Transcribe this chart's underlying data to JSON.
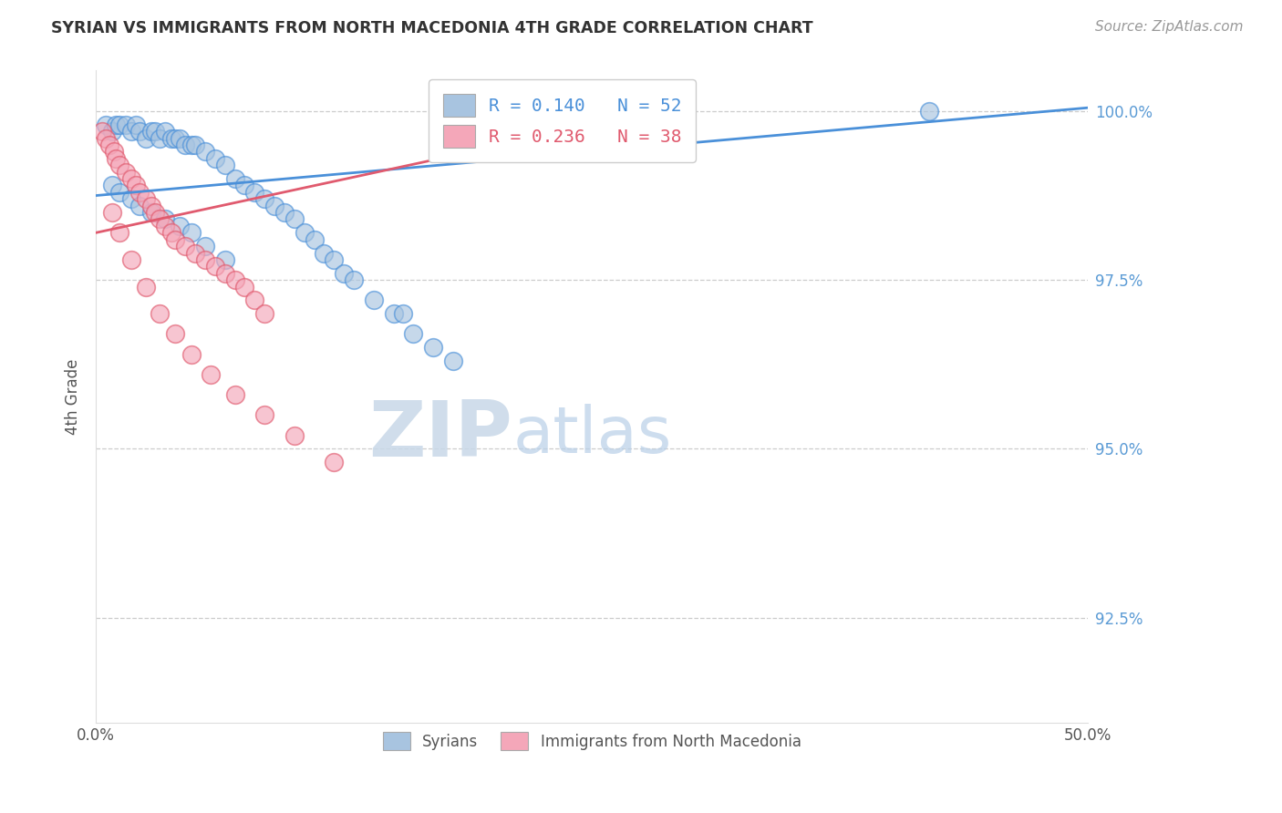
{
  "title": "SYRIAN VS IMMIGRANTS FROM NORTH MACEDONIA 4TH GRADE CORRELATION CHART",
  "source": "Source: ZipAtlas.com",
  "ylabel": "4th Grade",
  "ytick_labels": [
    "92.5%",
    "95.0%",
    "97.5%",
    "100.0%"
  ],
  "ytick_values": [
    0.925,
    0.95,
    0.975,
    1.0
  ],
  "xmin": 0.0,
  "xmax": 0.5,
  "ymin": 0.9095,
  "ymax": 1.006,
  "legend1_label": "R = 0.140   N = 52",
  "legend2_label": "R = 0.236   N = 38",
  "syrians_color": "#a8c4e0",
  "macedonians_color": "#f4a7b9",
  "trendline1_color": "#4a90d9",
  "trendline2_color": "#e05a6e",
  "syrians_x": [
    0.005,
    0.008,
    0.01,
    0.012,
    0.015,
    0.018,
    0.02,
    0.022,
    0.025,
    0.028,
    0.03,
    0.032,
    0.035,
    0.038,
    0.04,
    0.042,
    0.045,
    0.048,
    0.05,
    0.055,
    0.06,
    0.065,
    0.07,
    0.075,
    0.08,
    0.085,
    0.09,
    0.095,
    0.1,
    0.105,
    0.11,
    0.115,
    0.12,
    0.125,
    0.13,
    0.14,
    0.15,
    0.16,
    0.17,
    0.18,
    0.008,
    0.012,
    0.018,
    0.022,
    0.028,
    0.035,
    0.042,
    0.048,
    0.055,
    0.065,
    0.42,
    0.155
  ],
  "syrians_y": [
    0.998,
    0.997,
    0.998,
    0.998,
    0.998,
    0.997,
    0.998,
    0.997,
    0.996,
    0.997,
    0.997,
    0.996,
    0.997,
    0.996,
    0.996,
    0.996,
    0.995,
    0.995,
    0.995,
    0.994,
    0.993,
    0.992,
    0.99,
    0.989,
    0.988,
    0.987,
    0.986,
    0.985,
    0.984,
    0.982,
    0.981,
    0.979,
    0.978,
    0.976,
    0.975,
    0.972,
    0.97,
    0.967,
    0.965,
    0.963,
    0.989,
    0.988,
    0.987,
    0.986,
    0.985,
    0.984,
    0.983,
    0.982,
    0.98,
    0.978,
    1.0,
    0.97
  ],
  "macedonians_x": [
    0.003,
    0.005,
    0.007,
    0.009,
    0.01,
    0.012,
    0.015,
    0.018,
    0.02,
    0.022,
    0.025,
    0.028,
    0.03,
    0.032,
    0.035,
    0.038,
    0.04,
    0.045,
    0.05,
    0.055,
    0.06,
    0.065,
    0.07,
    0.075,
    0.08,
    0.085,
    0.008,
    0.012,
    0.018,
    0.025,
    0.032,
    0.04,
    0.048,
    0.058,
    0.07,
    0.085,
    0.1,
    0.12
  ],
  "macedonians_y": [
    0.997,
    0.996,
    0.995,
    0.994,
    0.993,
    0.992,
    0.991,
    0.99,
    0.989,
    0.988,
    0.987,
    0.986,
    0.985,
    0.984,
    0.983,
    0.982,
    0.981,
    0.98,
    0.979,
    0.978,
    0.977,
    0.976,
    0.975,
    0.974,
    0.972,
    0.97,
    0.985,
    0.982,
    0.978,
    0.974,
    0.97,
    0.967,
    0.964,
    0.961,
    0.958,
    0.955,
    0.952,
    0.948
  ],
  "trendline1_x0": 0.0,
  "trendline1_x1": 0.5,
  "trendline1_y0": 0.9875,
  "trendline1_y1": 1.0005,
  "trendline2_x0": 0.0,
  "trendline2_x1": 0.3,
  "trendline2_y0": 0.982,
  "trendline2_y1": 1.001
}
